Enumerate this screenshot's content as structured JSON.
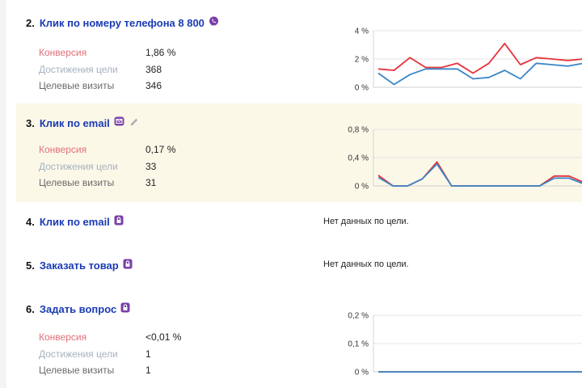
{
  "labels": {
    "conversion": "Конверсия",
    "achievements": "Достижения цели",
    "visits": "Целевые визиты",
    "no_data": "Нет данных по цели."
  },
  "colors": {
    "link": "#1a3bb5",
    "conversion_line": "#e8323c",
    "achievements_line": "#3b86c8",
    "highlight_bg": "#fbf8e8",
    "viber_icon": "#7b3fa8"
  },
  "goals": [
    {
      "number": "2.",
      "title": "Клик по номеру телефона 8 800",
      "icon": "phone-bubble-icon",
      "conversion": "1,86 %",
      "achievements": "368",
      "visits": "346"
    },
    {
      "number": "3.",
      "title": "Клик по email",
      "icon": "email-bubble-icon",
      "edit_icon": "pencil-icon",
      "conversion": "0,17 %",
      "achievements": "33",
      "visits": "31"
    },
    {
      "number": "4.",
      "title": "Клик по email",
      "icon": "lock-bubble-icon"
    },
    {
      "number": "5.",
      "title": "Заказать товар",
      "icon": "lock-bubble-icon"
    },
    {
      "number": "6.",
      "title": "Задать вопрос",
      "icon": "lock-bubble-icon",
      "conversion": "<0,01 %",
      "achievements": "1",
      "visits": "1"
    }
  ],
  "chart_data": [
    {
      "type": "line",
      "ticks": [
        "4 %",
        "2 %",
        "0 %"
      ],
      "ylim": [
        0,
        4
      ],
      "series": [
        {
          "values": [
            1.3,
            1.2,
            2.1,
            1.4,
            1.4,
            1.7,
            1.0,
            1.7,
            3.1,
            1.6,
            2.1,
            2.0,
            1.9,
            2.0
          ]
        },
        {
          "values": [
            1.0,
            0.2,
            0.9,
            1.3,
            1.3,
            1.3,
            0.6,
            0.7,
            1.2,
            0.6,
            1.7,
            1.6,
            1.5,
            1.7
          ]
        }
      ]
    },
    {
      "type": "line",
      "ticks": [
        "0,8 %",
        "0,4 %",
        "0 %"
      ],
      "ylim": [
        0,
        0.8
      ],
      "series": [
        {
          "values": [
            0.15,
            0.0,
            0.0,
            0.1,
            0.34,
            0.0,
            0.0,
            0.0,
            0.0,
            0.0,
            0.0,
            0.0,
            0.14,
            0.14,
            0.05
          ]
        },
        {
          "values": [
            0.12,
            0.0,
            0.0,
            0.1,
            0.31,
            0.0,
            0.0,
            0.0,
            0.0,
            0.0,
            0.0,
            0.0,
            0.11,
            0.11,
            0.03
          ]
        }
      ]
    },
    {
      "type": "line",
      "ticks": [
        "0,2 %",
        "0,1 %",
        "0 %"
      ],
      "ylim": [
        0,
        0.2
      ],
      "series": [
        {
          "values": [
            0,
            0,
            0,
            0,
            0,
            0,
            0,
            0,
            0,
            0,
            0,
            0,
            0,
            0,
            0
          ]
        },
        {
          "values": [
            0,
            0,
            0,
            0,
            0,
            0,
            0,
            0,
            0,
            0,
            0,
            0,
            0,
            0,
            0
          ]
        }
      ]
    }
  ]
}
